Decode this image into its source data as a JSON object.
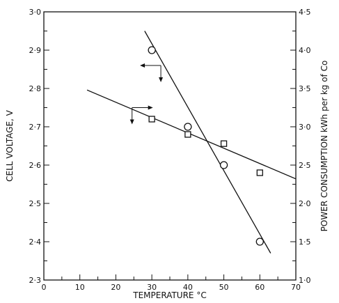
{
  "chart_data": {
    "type": "scatter",
    "title": "",
    "xlabel": "TEMPERATURE °C",
    "ylabel_left": "CELL VOLTAGE, V",
    "ylabel_right": "POWER CONSUMPTION kWh per kg of Co",
    "xlim": [
      0,
      70
    ],
    "ylim_left": [
      2.3,
      3.0
    ],
    "ylim_right": [
      1.0,
      4.5
    ],
    "x_ticks": [
      "0",
      "10",
      "20",
      "30",
      "40",
      "50",
      "60",
      "70"
    ],
    "y_left_ticks": [
      "2·3",
      "2·4",
      "2·5",
      "2·6",
      "2·7",
      "2·8",
      "2·9",
      "3·0"
    ],
    "y_right_ticks": [
      "1·0",
      "1·5",
      "2·0",
      "2·5",
      "3·0",
      "3·5",
      "4·0",
      "4·5"
    ],
    "grid": false,
    "series": [
      {
        "axis": "left",
        "marker": "circle",
        "points": [
          [
            30,
            2.9
          ],
          [
            40,
            2.7
          ],
          [
            50,
            2.6
          ],
          [
            60,
            2.4
          ]
        ],
        "fit_line": [
          [
            28,
            2.95
          ],
          [
            63,
            2.37
          ]
        ]
      },
      {
        "axis": "right",
        "marker": "square",
        "points": [
          [
            30,
            3.1
          ],
          [
            40,
            2.9
          ],
          [
            50,
            2.78
          ],
          [
            60,
            2.4
          ]
        ],
        "fit_line": [
          [
            12,
            3.48
          ],
          [
            70,
            2.32
          ]
        ]
      }
    ]
  }
}
